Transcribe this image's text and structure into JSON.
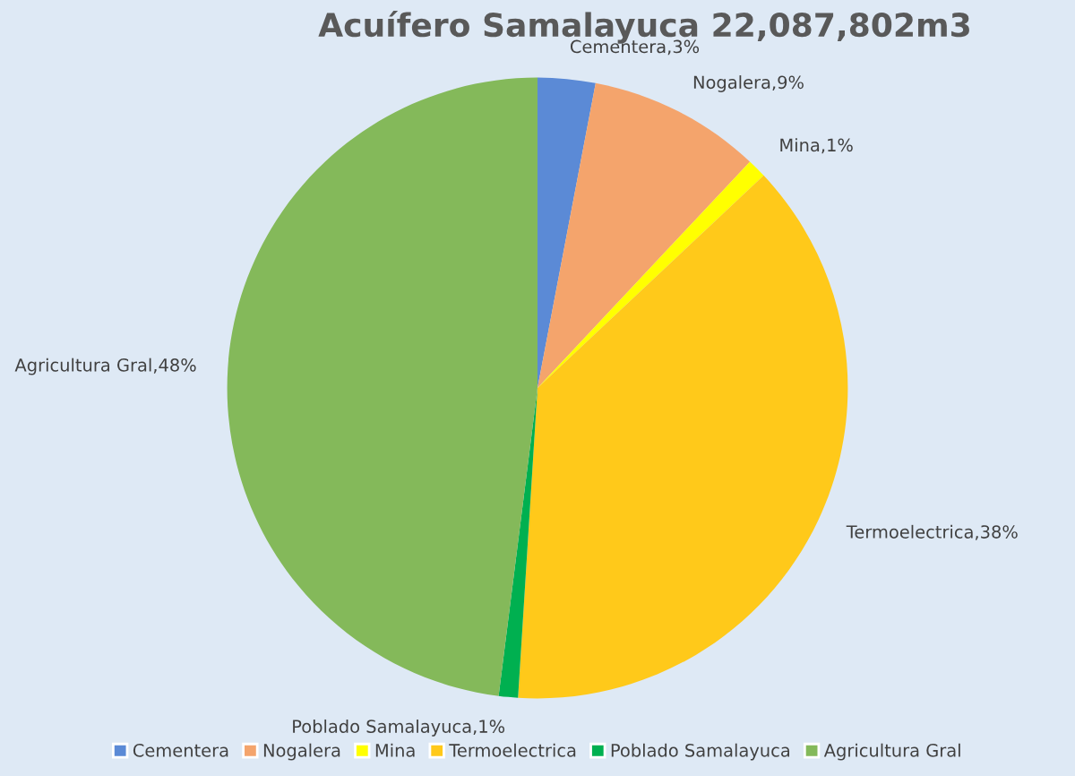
{
  "chart_data": {
    "type": "pie",
    "title": "Acuífero Samalayuca 22,087,802m3",
    "categories": [
      "Cementera",
      "Nogalera",
      "Mina",
      "Termoelectrica",
      "Poblado Samalayuca",
      "Agricultura Gral"
    ],
    "values": [
      3,
      9,
      1,
      38,
      1,
      48
    ],
    "colors": [
      "#5b8ad6",
      "#f4a46c",
      "#ffff00",
      "#ffc91a",
      "#00b050",
      "#84b95a"
    ],
    "value_labels": [
      "Cementera,3%",
      "Nogalera,9%",
      "Mina,1%",
      "Termoelectrica,38%",
      "Poblado Samalayuca,1%",
      "Agricultura Gral,48%"
    ],
    "legend": "bottom"
  }
}
